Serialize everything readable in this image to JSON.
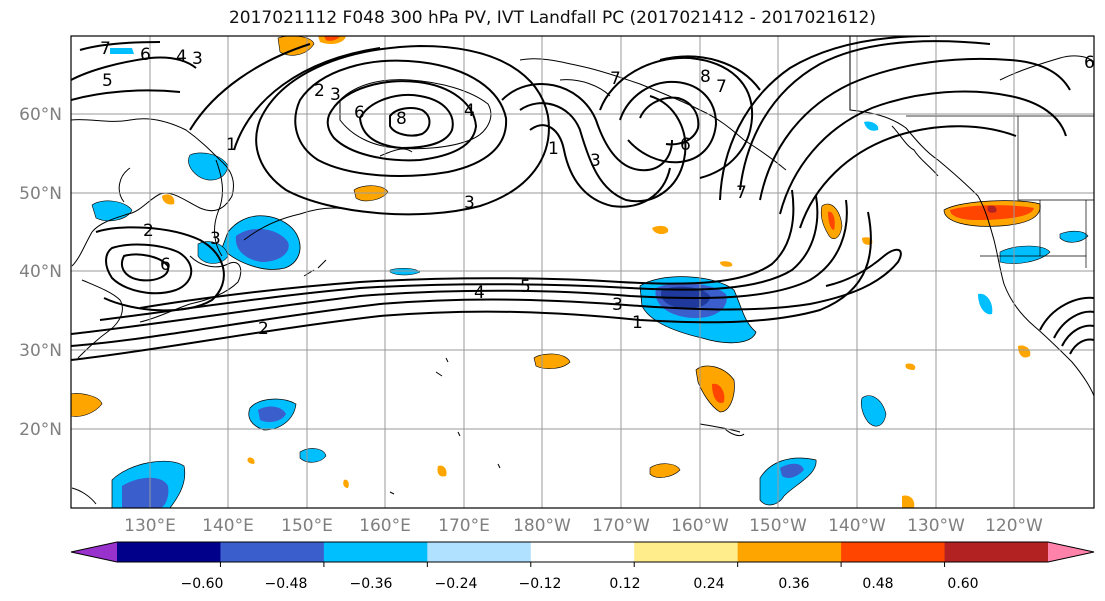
{
  "title": "2017021112 F048 300 hPa PV, IVT Landfall PC (2017021412 - 2017021612)",
  "map": {
    "lon_labels": [
      "130°E",
      "140°E",
      "150°E",
      "160°E",
      "170°E",
      "180°W",
      "170°W",
      "160°W",
      "150°W",
      "140°W",
      "130°W",
      "120°W"
    ],
    "lat_labels": [
      "60°N",
      "50°N",
      "40°N",
      "30°N",
      "20°N"
    ],
    "label_color": "#7f7f7f",
    "gridline_color": "#9a9a9a"
  },
  "contours": {
    "labels": [
      "7",
      "6",
      "4",
      "3",
      "5",
      "2",
      "3",
      "6",
      "8",
      "4",
      "3",
      "2",
      "6",
      "1",
      "2",
      "3",
      "4",
      "5",
      "3",
      "1",
      "3",
      "1",
      "7",
      "6",
      "8",
      "7",
      "7",
      "6"
    ]
  },
  "colorbar": {
    "colors": [
      "#9932cc",
      "#00008b",
      "#3a5fcd",
      "#00bfff",
      "#b0e2ff",
      "#ffffff",
      "#ffec8b",
      "#ffa500",
      "#ff4500",
      "#b22222",
      "#ff82ab"
    ],
    "tick_labels": [
      "−0.60",
      "−0.48",
      "−0.36",
      "−0.24",
      "−0.12",
      "0.12",
      "0.24",
      "0.36",
      "0.48",
      "0.60"
    ]
  }
}
